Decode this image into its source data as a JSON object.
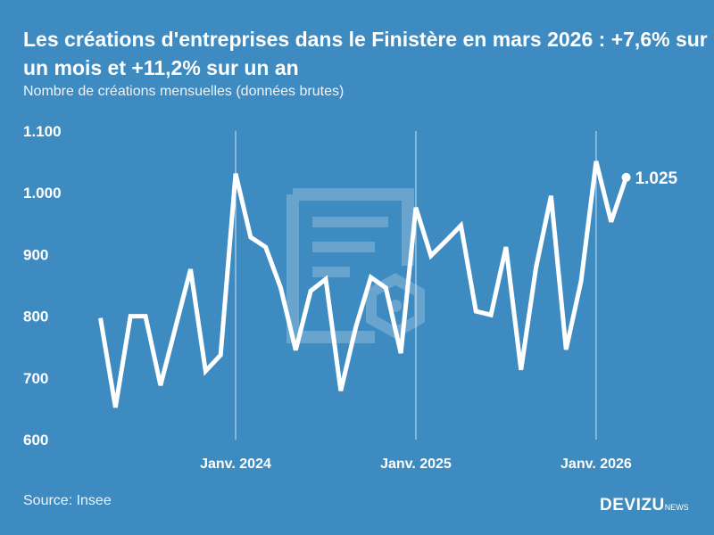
{
  "chart_data": {
    "type": "line",
    "title": "Les créations d'entreprises dans le Finistère en mars 2026 : +7,6% sur un mois et +11,2% sur un an",
    "subtitle": "Nombre de créations mensuelles (données brutes)",
    "xlabel": "",
    "ylabel": "",
    "ylim": [
      600,
      1100
    ],
    "y_ticks": [
      "600",
      "700",
      "800",
      "900",
      "1.000",
      "1.100"
    ],
    "y_tick_values": [
      600,
      700,
      800,
      900,
      1000,
      1100
    ],
    "x_ticks": [
      {
        "label": "Janv. 2024",
        "month": "2024-01"
      },
      {
        "label": "Janv. 2025",
        "month": "2025-01"
      },
      {
        "label": "Janv. 2026",
        "month": "2026-01"
      }
    ],
    "x": [
      "2023-04",
      "2023-05",
      "2023-06",
      "2023-07",
      "2023-08",
      "2023-09",
      "2023-10",
      "2023-11",
      "2023-12",
      "2024-01",
      "2024-02",
      "2024-03",
      "2024-04",
      "2024-05",
      "2024-06",
      "2024-07",
      "2024-08",
      "2024-09",
      "2024-10",
      "2024-11",
      "2024-12",
      "2025-01",
      "2025-02",
      "2025-03",
      "2025-04",
      "2025-05",
      "2025-06",
      "2025-07",
      "2025-08",
      "2025-09",
      "2025-10",
      "2025-11",
      "2025-12",
      "2026-01",
      "2026-02",
      "2026-03"
    ],
    "values": [
      797,
      652,
      800,
      800,
      688,
      782,
      876,
      711,
      737,
      1031,
      928,
      912,
      846,
      745,
      841,
      860,
      679,
      782,
      863,
      846,
      740,
      976,
      898,
      922,
      947,
      808,
      802,
      912,
      713,
      879,
      995,
      746,
      857,
      1051,
      953,
      1025
    ],
    "last_label": "1.025",
    "grid": false,
    "line_color": "#ffffff"
  },
  "source": "Source: Insee",
  "logo": {
    "main": "DEVIZU",
    "suffix": "NEWS"
  },
  "colors": {
    "background": "#3d8bc1",
    "line": "#ffffff"
  }
}
